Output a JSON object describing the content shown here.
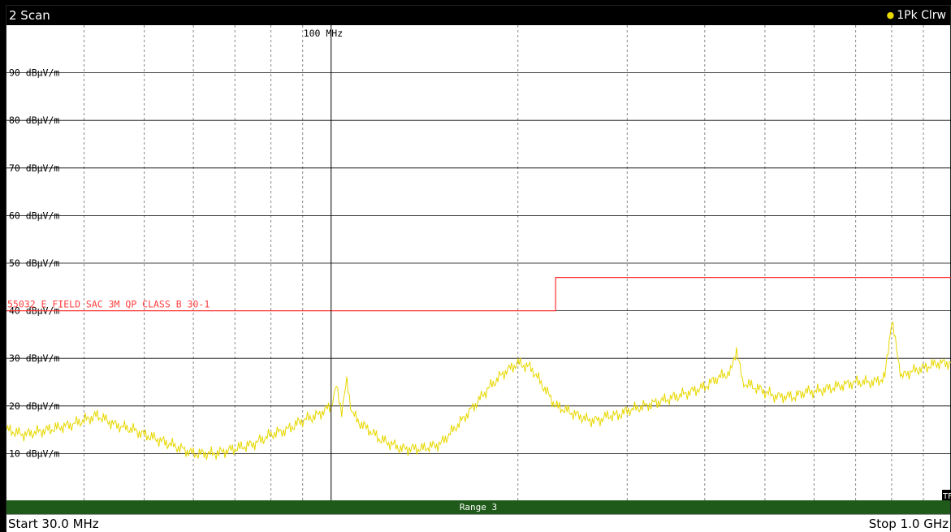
{
  "window": {
    "title": "2 Scan",
    "trace_legend": "1Pk Clrw",
    "trace_dot": "●"
  },
  "footer": {
    "start": "Start 30.0 MHz",
    "stop": "Stop 1.0 GHz",
    "range": "Range 3",
    "tr_badge": "TF"
  },
  "colors": {
    "trace": "#e8d800",
    "limit": "#ff3030",
    "range_bar": "#1f5a1a",
    "background": "#ffffff"
  },
  "chart_data": {
    "type": "line",
    "x_scale": "log",
    "x_unit": "MHz",
    "xlim": [
      30,
      1000
    ],
    "y_unit": "dBµV/m",
    "ylim": [
      0,
      100
    ],
    "grid": true,
    "y_ticks": [
      {
        "value": 90,
        "label": "90 dBµV/m"
      },
      {
        "value": 80,
        "label": "80 dBµV/m"
      },
      {
        "value": 70,
        "label": "70 dBµV/m"
      },
      {
        "value": 60,
        "label": "60 dBµV/m"
      },
      {
        "value": 50,
        "label": "50 dBµV/m"
      },
      {
        "value": 40,
        "label": "40 dBµV/m"
      },
      {
        "value": 30,
        "label": "30 dBµV/m"
      },
      {
        "value": 20,
        "label": "20 dBµV/m"
      },
      {
        "value": 10,
        "label": "10 dBµV/m"
      }
    ],
    "x_marker": {
      "value": 100,
      "label": "100 MHz"
    },
    "limit_line": {
      "name": "55032 E FIELD SAC 3M QP CLASS B 30-1",
      "x": [
        30,
        230,
        230,
        1000
      ],
      "y": [
        40,
        40,
        47,
        47
      ]
    },
    "series": [
      {
        "name": "1Pk Clrw",
        "x": [
          30,
          32,
          35,
          38,
          40,
          42,
          45,
          48,
          50,
          55,
          60,
          65,
          70,
          75,
          80,
          85,
          90,
          95,
          100,
          102,
          104,
          106,
          108,
          110,
          115,
          120,
          125,
          130,
          140,
          150,
          160,
          170,
          180,
          190,
          200,
          210,
          220,
          230,
          240,
          250,
          260,
          270,
          280,
          290,
          300,
          320,
          340,
          360,
          380,
          400,
          420,
          440,
          450,
          460,
          480,
          500,
          520,
          540,
          560,
          580,
          600,
          650,
          700,
          750,
          780,
          800,
          830,
          850,
          900,
          950,
          1000
        ],
        "y": [
          15,
          14,
          15,
          16,
          17,
          18,
          16,
          15,
          14,
          12,
          10,
          10,
          11,
          12,
          14,
          15,
          17,
          18,
          20,
          24,
          19,
          25,
          19,
          17,
          15,
          13,
          12,
          11,
          11,
          12,
          16,
          20,
          24,
          27,
          29,
          28,
          24,
          20,
          19,
          18,
          17,
          17,
          18,
          18,
          19,
          20,
          21,
          22,
          23,
          24,
          26,
          27,
          32,
          25,
          24,
          23,
          22,
          22,
          22,
          23,
          23,
          24,
          25,
          25,
          26,
          38,
          26,
          27,
          28,
          29,
          29
        ]
      }
    ]
  }
}
